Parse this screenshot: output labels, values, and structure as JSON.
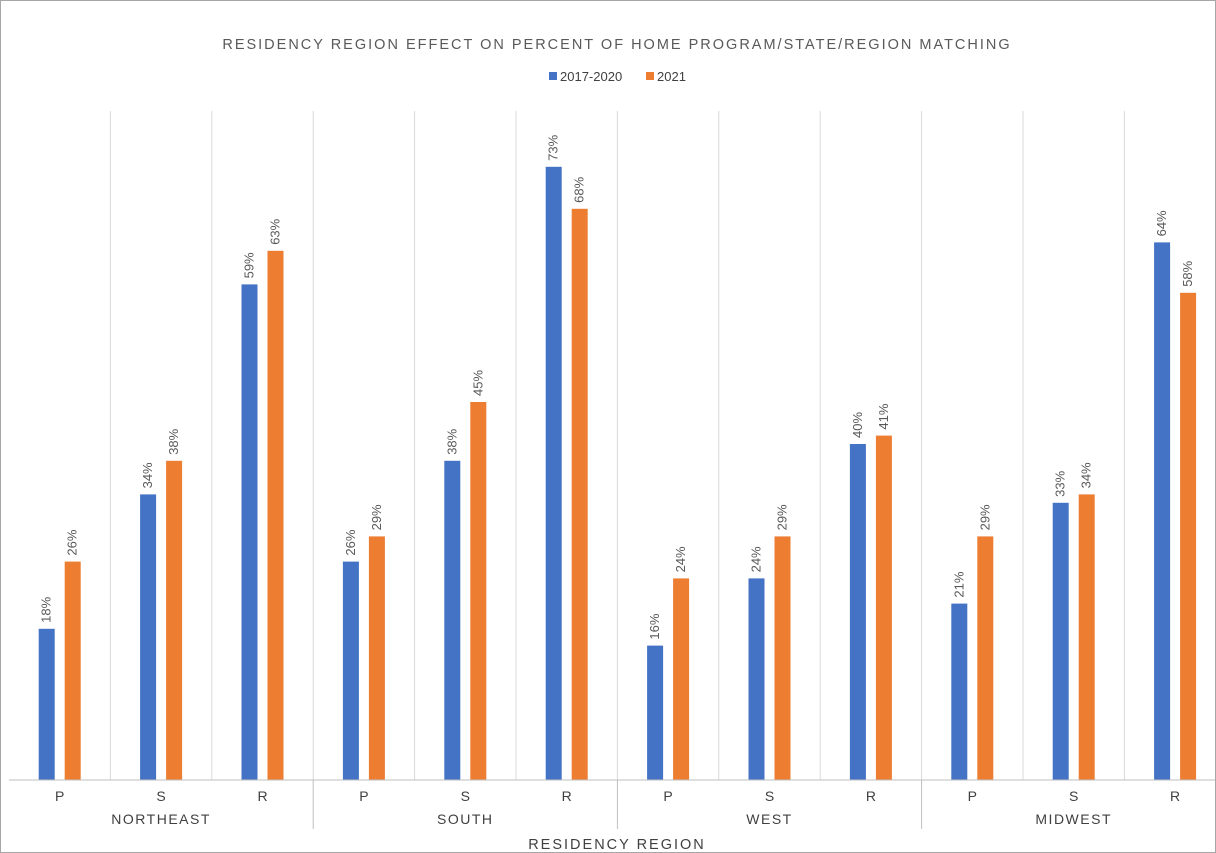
{
  "chart_data": {
    "type": "bar",
    "title": "RESIDENCY REGION EFFECT ON PERCENT OF HOME PROGRAM/STATE/REGION MATCHING",
    "xlabel": "RESIDENCY REGION",
    "ylabel": "",
    "ylim": [
      0,
      80
    ],
    "grid": "vertical category separators",
    "legend_position": "top",
    "groups": [
      {
        "label": "NORTHEAST",
        "categories": [
          "P",
          "S",
          "R"
        ]
      },
      {
        "label": "SOUTH",
        "categories": [
          "P",
          "S",
          "R"
        ]
      },
      {
        "label": "WEST",
        "categories": [
          "P",
          "S",
          "R"
        ]
      },
      {
        "label": "MIDWEST",
        "categories": [
          "P",
          "S",
          "R"
        ]
      }
    ],
    "series": [
      {
        "name": "2017-2020",
        "color": "#4472c4",
        "values": [
          18,
          34,
          59,
          26,
          38,
          73,
          16,
          24,
          40,
          21,
          33,
          64
        ],
        "labels": [
          "18%",
          "34%",
          "59%",
          "26%",
          "38%",
          "73%",
          "16%",
          "24%",
          "40%",
          "21%",
          "33%",
          "64%"
        ]
      },
      {
        "name": "2021",
        "color": "#ed7d31",
        "values": [
          26,
          38,
          63,
          29,
          45,
          68,
          24,
          29,
          41,
          29,
          34,
          58
        ],
        "labels": [
          "26%",
          "38%",
          "63%",
          "29%",
          "45%",
          "68%",
          "24%",
          "29%",
          "41%",
          "29%",
          "34%",
          "58%"
        ]
      }
    ]
  }
}
